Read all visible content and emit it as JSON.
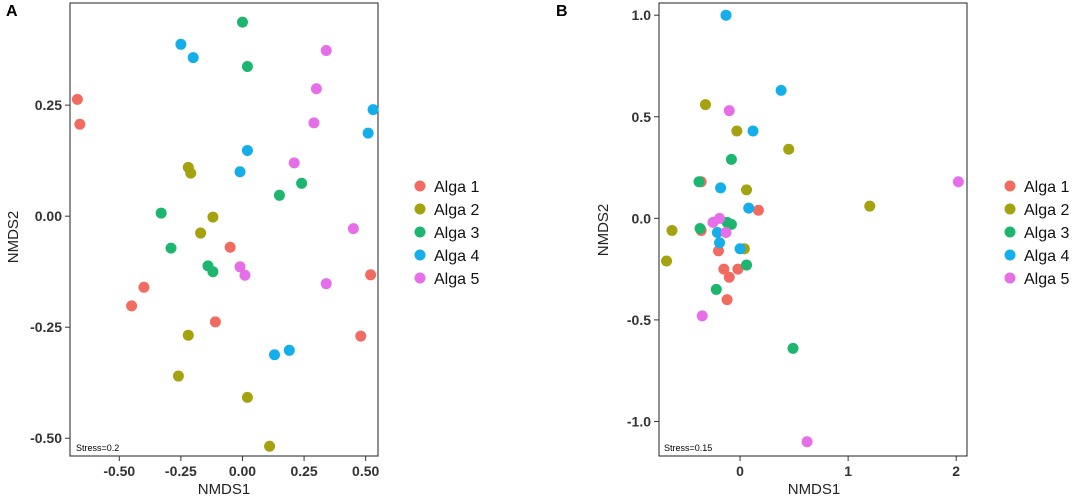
{
  "colors": {
    "Alga 1": "#F16B61",
    "Alga 2": "#A5A20F",
    "Alga 3": "#1DB66F",
    "Alga 4": "#14AEEA",
    "Alga 5": "#E66EE8"
  },
  "chart_data": [
    {
      "type": "scatter",
      "panel": "A",
      "xlabel": "NMDS1",
      "ylabel": "NMDS2",
      "xlim": [
        -0.7,
        0.55
      ],
      "ylim": [
        -0.54,
        0.48
      ],
      "xticks": [
        -0.5,
        -0.25,
        0.0,
        0.25,
        0.5
      ],
      "xtick_labels": [
        "-0.50",
        "-0.25",
        "0.00",
        "0.25",
        "0.50"
      ],
      "yticks": [
        0.25,
        0.0,
        -0.25,
        -0.5
      ],
      "ytick_labels": [
        "0.25",
        "0.00",
        "-0.25",
        "-0.50"
      ],
      "annotation": "Stress=0.2",
      "legend": [
        "Alga 1",
        "Alga 2",
        "Alga 3",
        "Alga 4",
        "Alga 5"
      ],
      "series": [
        {
          "name": "Alga 1",
          "points": [
            [
              -0.67,
              0.263
            ],
            [
              -0.66,
              0.207
            ],
            [
              -0.45,
              -0.202
            ],
            [
              -0.4,
              -0.16
            ],
            [
              -0.11,
              -0.238
            ],
            [
              -0.05,
              -0.07
            ],
            [
              0.48,
              -0.27
            ],
            [
              0.52,
              -0.132
            ]
          ]
        },
        {
          "name": "Alga 2",
          "points": [
            [
              -0.22,
              0.11
            ],
            [
              -0.21,
              0.097
            ],
            [
              -0.26,
              -0.36
            ],
            [
              -0.22,
              -0.268
            ],
            [
              -0.17,
              -0.038
            ],
            [
              -0.12,
              -0.002
            ],
            [
              0.02,
              -0.408
            ],
            [
              0.11,
              -0.518
            ]
          ]
        },
        {
          "name": "Alga 3",
          "points": [
            [
              -0.33,
              0.007
            ],
            [
              -0.29,
              -0.072
            ],
            [
              -0.14,
              -0.112
            ],
            [
              -0.12,
              -0.125
            ],
            [
              0.0,
              0.437
            ],
            [
              0.02,
              0.337
            ],
            [
              0.15,
              0.047
            ],
            [
              0.24,
              0.074
            ]
          ]
        },
        {
          "name": "Alga 4",
          "points": [
            [
              -0.25,
              0.387
            ],
            [
              -0.2,
              0.357
            ],
            [
              -0.01,
              0.1
            ],
            [
              0.02,
              0.148
            ],
            [
              0.13,
              -0.312
            ],
            [
              0.19,
              -0.302
            ],
            [
              0.51,
              0.187
            ],
            [
              0.53,
              0.24
            ]
          ]
        },
        {
          "name": "Alga 5",
          "points": [
            [
              -0.01,
              -0.114
            ],
            [
              0.01,
              -0.133
            ],
            [
              0.21,
              0.12
            ],
            [
              0.29,
              0.21
            ],
            [
              0.3,
              0.287
            ],
            [
              0.34,
              0.373
            ],
            [
              0.34,
              -0.152
            ],
            [
              0.45,
              -0.028
            ]
          ]
        }
      ]
    },
    {
      "type": "scatter",
      "panel": "B",
      "xlabel": "NMDS1",
      "ylabel": "NMDS2",
      "xlim": [
        -0.75,
        2.1
      ],
      "ylim": [
        -1.17,
        1.06
      ],
      "xticks": [
        0,
        1,
        2
      ],
      "xtick_labels": [
        "0",
        "1",
        "2"
      ],
      "yticks": [
        1.0,
        0.5,
        0.0,
        -0.5,
        -1.0
      ],
      "ytick_labels": [
        "1.0",
        "0.5",
        "0.0",
        "-0.5",
        "-1.0"
      ],
      "annotation": "Stress=0.15",
      "legend": [
        "Alga 1",
        "Alga 2",
        "Alga 3",
        "Alga 4",
        "Alga 5"
      ],
      "series": [
        {
          "name": "Alga 1",
          "points": [
            [
              -0.36,
              0.18
            ],
            [
              -0.36,
              -0.06
            ],
            [
              -0.2,
              -0.16
            ],
            [
              -0.15,
              -0.25
            ],
            [
              -0.12,
              -0.4
            ],
            [
              -0.1,
              -0.29
            ],
            [
              -0.02,
              -0.25
            ],
            [
              0.17,
              0.04
            ]
          ]
        },
        {
          "name": "Alga 2",
          "points": [
            [
              -0.32,
              0.56
            ],
            [
              -0.03,
              0.43
            ],
            [
              0.45,
              0.34
            ],
            [
              0.06,
              0.14
            ],
            [
              -0.63,
              -0.06
            ],
            [
              -0.68,
              -0.21
            ],
            [
              0.04,
              -0.15
            ],
            [
              1.2,
              0.06
            ]
          ]
        },
        {
          "name": "Alga 3",
          "points": [
            [
              -0.38,
              0.18
            ],
            [
              -0.37,
              -0.05
            ],
            [
              -0.22,
              -0.35
            ],
            [
              -0.12,
              -0.02
            ],
            [
              -0.08,
              -0.03
            ],
            [
              -0.08,
              0.29
            ],
            [
              0.06,
              -0.23
            ],
            [
              0.49,
              -0.64
            ]
          ]
        },
        {
          "name": "Alga 4",
          "points": [
            [
              -0.13,
              1.0
            ],
            [
              0.38,
              0.63
            ],
            [
              0.12,
              0.43
            ],
            [
              -0.18,
              0.15
            ],
            [
              0.08,
              0.05
            ],
            [
              -0.21,
              -0.07
            ],
            [
              -0.19,
              -0.12
            ],
            [
              0.0,
              -0.15
            ]
          ]
        },
        {
          "name": "Alga 5",
          "points": [
            [
              -0.1,
              0.53
            ],
            [
              -0.25,
              -0.02
            ],
            [
              -0.19,
              0.0
            ],
            [
              -0.13,
              -0.07
            ],
            [
              -0.35,
              -0.48
            ],
            [
              0.62,
              -1.1
            ],
            [
              2.02,
              0.18
            ]
          ]
        }
      ]
    }
  ]
}
